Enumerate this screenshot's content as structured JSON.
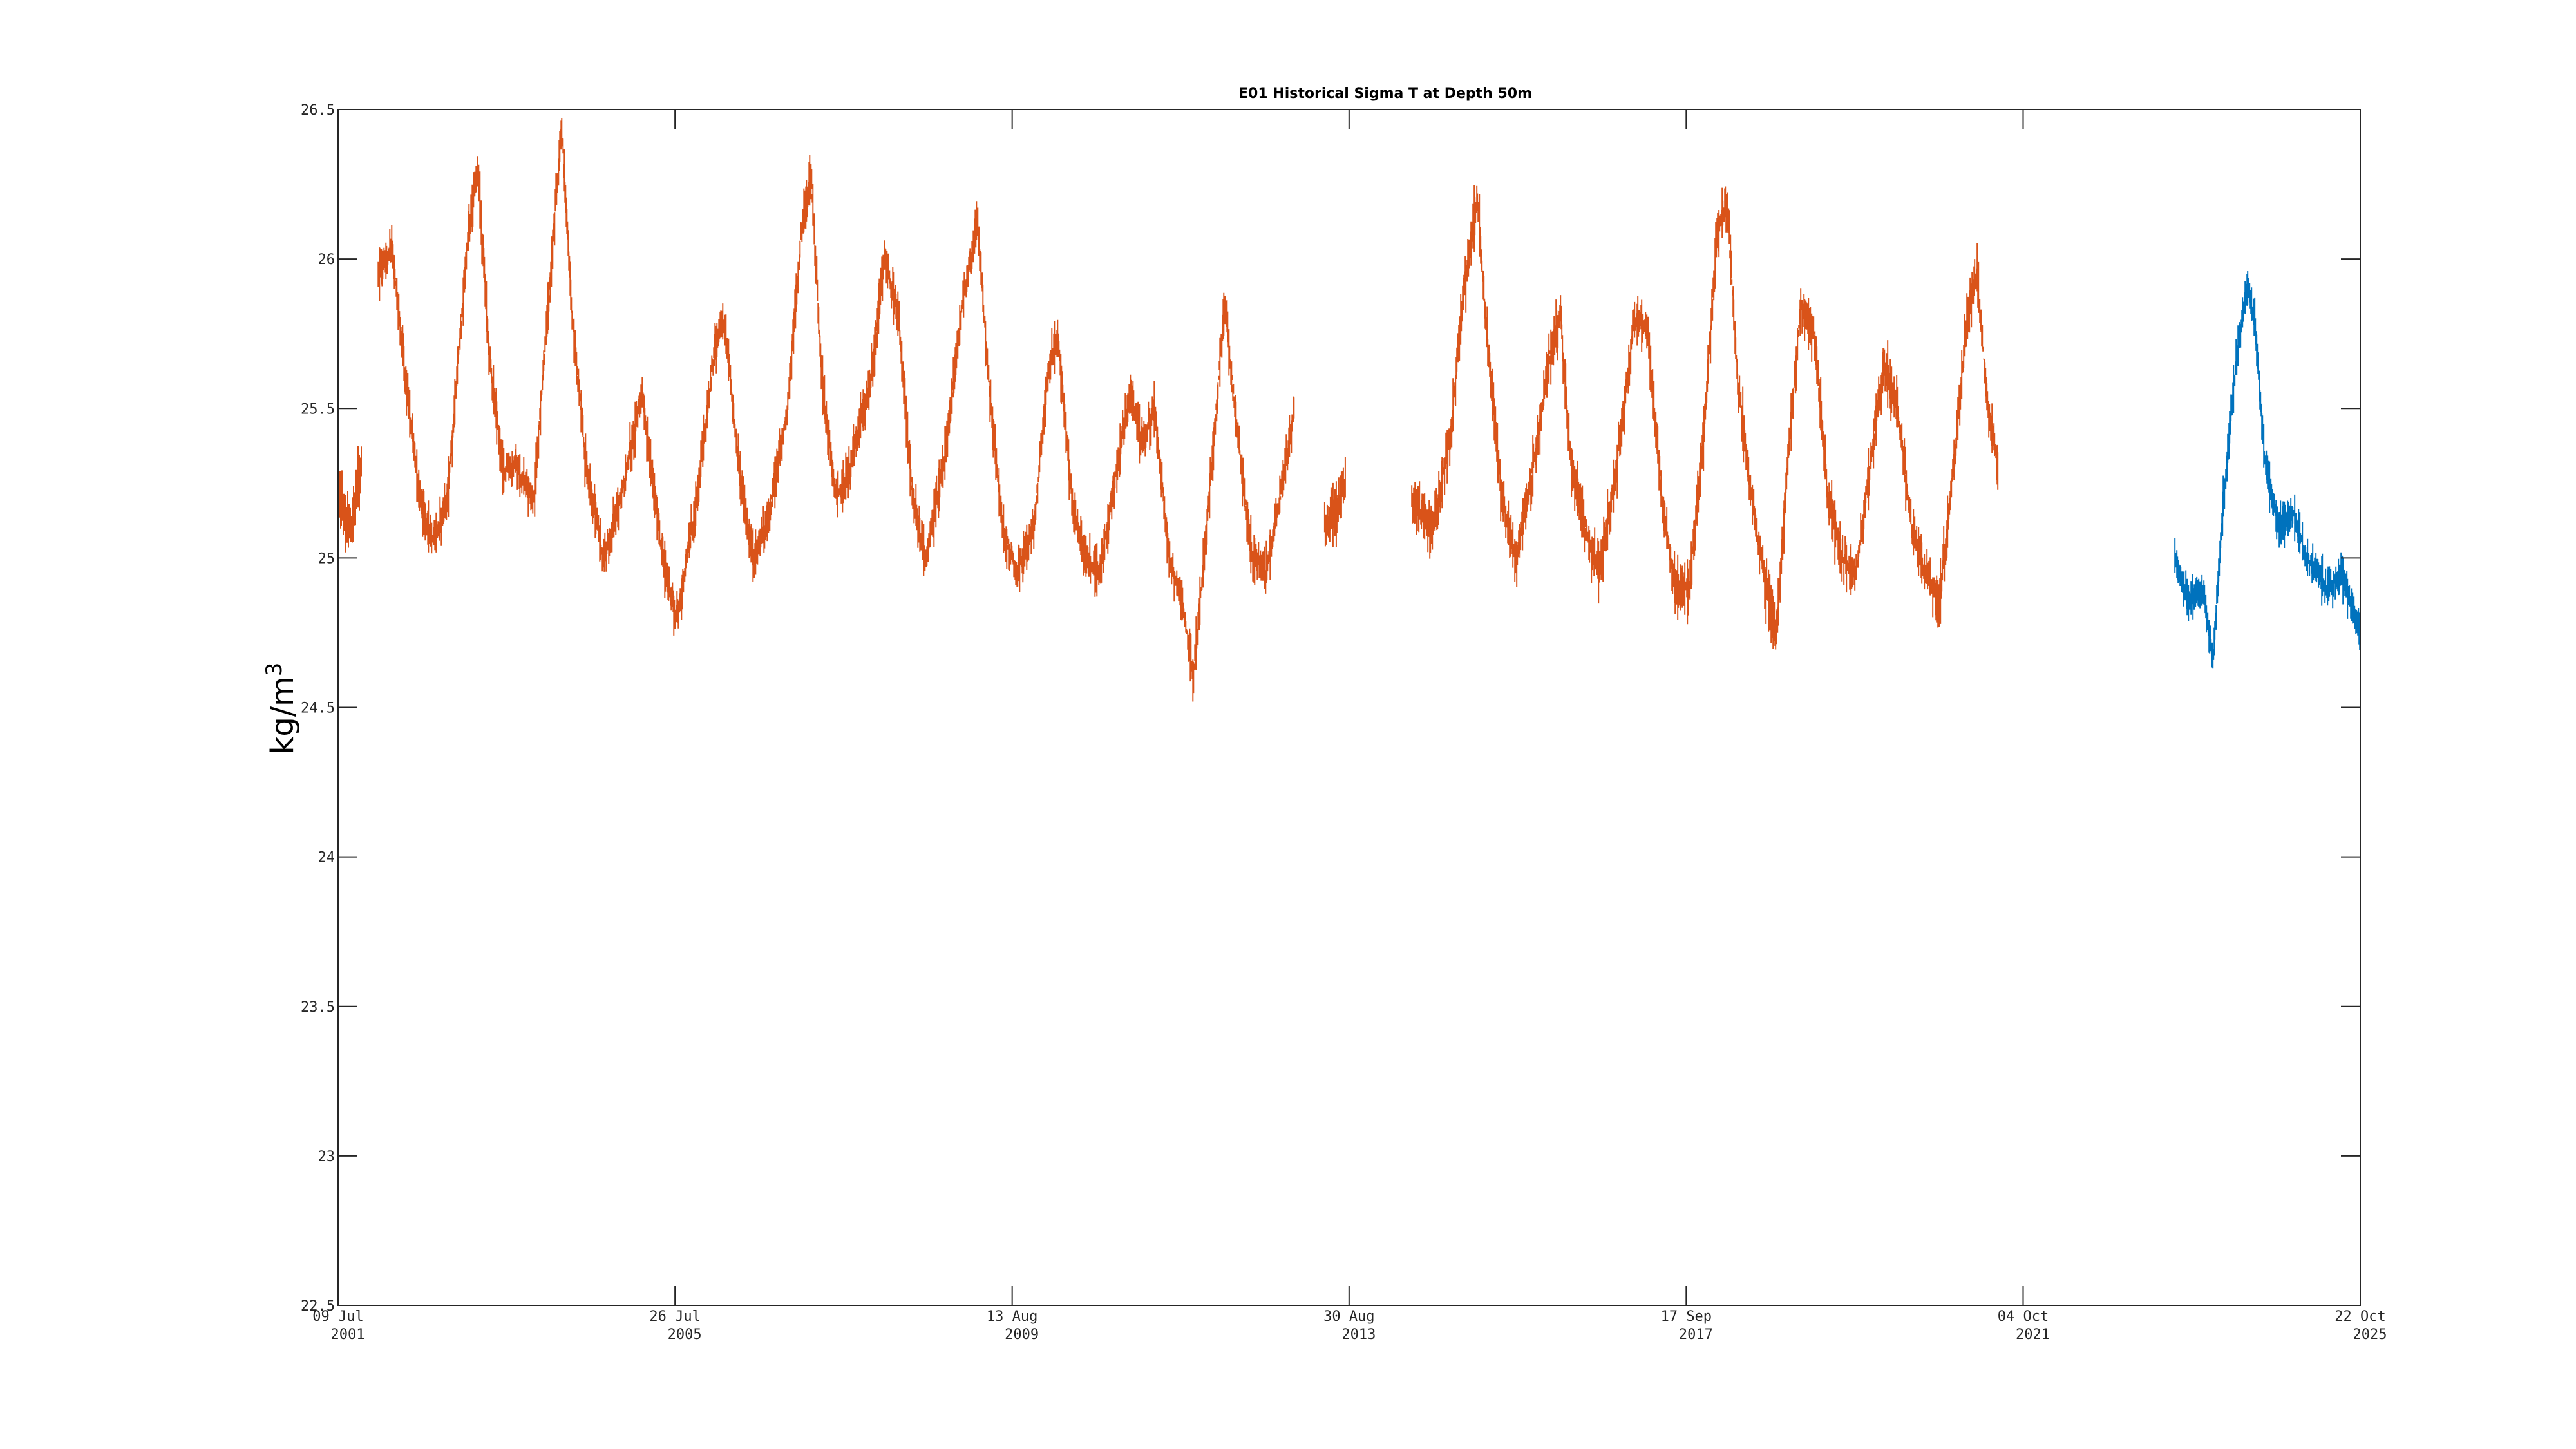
{
  "chart_data": {
    "type": "line",
    "title": "E01 Historical Sigma T at Depth 50m",
    "ylabel": "kg/m",
    "ylabel_superscript": "3",
    "xlabel": "",
    "ylim": [
      22.5,
      26.5
    ],
    "xlim": [
      "2001-07-09",
      "2025-10-22"
    ],
    "grid": false,
    "yticks": [
      22.5,
      23,
      23.5,
      24,
      24.5,
      25,
      25.5,
      26,
      26.5
    ],
    "ytick_labels": [
      "22.5",
      "23",
      "23.5",
      "24",
      "24.5",
      "25",
      "25.5",
      "26",
      "26.5"
    ],
    "xticks": [
      {
        "date": "2001-07-09",
        "line1": "09 Jul",
        "line2": "2001"
      },
      {
        "date": "2005-07-26",
        "line1": "26 Jul",
        "line2": "2005"
      },
      {
        "date": "2009-08-13",
        "line1": "13 Aug",
        "line2": "2009"
      },
      {
        "date": "2013-08-30",
        "line1": "30 Aug",
        "line2": "2013"
      },
      {
        "date": "2017-09-17",
        "line1": "17 Sep",
        "line2": "2017"
      },
      {
        "date": "2021-10-04",
        "line1": "04 Oct",
        "line2": "2021"
      },
      {
        "date": "2025-10-22",
        "line1": "22 Oct",
        "line2": "2025"
      }
    ],
    "series": [
      {
        "color": "#D95319",
        "segments": [
          {
            "noise": 0.1,
            "points": [
              [
                "2001-07-09",
                25.2
              ],
              [
                "2001-09-01",
                25.1
              ],
              [
                "2001-10-20",
                25.3
              ]
            ]
          },
          {
            "noise": 0.07,
            "points": [
              [
                "2002-01-01",
                25.95
              ],
              [
                "2002-03-01",
                26.05
              ],
              [
                "2002-05-01",
                25.6
              ],
              [
                "2002-07-01",
                25.2
              ],
              [
                "2002-09-01",
                25.05
              ],
              [
                "2002-11-01",
                25.2
              ],
              [
                "2003-02-01",
                26.1
              ],
              [
                "2003-03-15",
                26.3
              ],
              [
                "2003-05-01",
                25.7
              ],
              [
                "2003-07-01",
                25.3
              ],
              [
                "2003-09-01",
                25.3
              ],
              [
                "2003-11-15",
                25.2
              ],
              [
                "2004-02-01",
                26.0
              ],
              [
                "2004-03-15",
                26.45
              ],
              [
                "2004-05-01",
                25.8
              ],
              [
                "2004-07-01",
                25.3
              ],
              [
                "2004-09-15",
                25.0
              ],
              [
                "2004-12-01",
                25.2
              ],
              [
                "2005-03-01",
                25.55
              ],
              [
                "2005-06-01",
                25.0
              ],
              [
                "2005-08-01",
                24.8
              ],
              [
                "2005-11-01",
                25.2
              ],
              [
                "2006-01-15",
                25.7
              ],
              [
                "2006-03-01",
                25.8
              ],
              [
                "2006-05-01",
                25.3
              ],
              [
                "2006-07-01",
                25.0
              ],
              [
                "2006-09-01",
                25.1
              ],
              [
                "2006-12-01",
                25.5
              ],
              [
                "2007-02-01",
                26.1
              ],
              [
                "2007-03-15",
                26.28
              ],
              [
                "2007-05-01",
                25.6
              ],
              [
                "2007-07-01",
                25.2
              ],
              [
                "2007-09-01",
                25.3
              ],
              [
                "2007-12-01",
                25.6
              ],
              [
                "2008-02-01",
                26.0
              ],
              [
                "2008-04-01",
                25.8
              ],
              [
                "2008-06-01",
                25.2
              ],
              [
                "2008-08-01",
                25.0
              ],
              [
                "2008-10-15",
                25.3
              ],
              [
                "2009-01-15",
                25.9
              ],
              [
                "2009-03-15",
                26.12
              ],
              [
                "2009-05-01",
                25.6
              ],
              [
                "2009-07-01",
                25.1
              ],
              [
                "2009-09-01",
                24.95
              ],
              [
                "2009-11-15",
                25.1
              ],
              [
                "2010-01-15",
                25.6
              ],
              [
                "2010-03-01",
                25.75
              ],
              [
                "2010-05-01",
                25.2
              ],
              [
                "2010-07-01",
                25.0
              ],
              [
                "2010-09-01",
                24.95
              ],
              [
                "2010-11-15",
                25.3
              ],
              [
                "2011-01-15",
                25.55
              ],
              [
                "2011-03-01",
                25.4
              ],
              [
                "2011-05-01",
                25.5
              ],
              [
                "2011-07-01",
                25.0
              ],
              [
                "2011-09-01",
                24.85
              ],
              [
                "2011-10-15",
                24.6
              ],
              [
                "2011-12-15",
                25.1
              ],
              [
                "2012-03-01",
                25.85
              ],
              [
                "2012-05-01",
                25.4
              ],
              [
                "2012-07-01",
                25.0
              ],
              [
                "2012-09-01",
                24.95
              ],
              [
                "2012-11-01",
                25.2
              ],
              [
                "2013-01-01",
                25.5
              ]
            ]
          },
          {
            "noise": 0.1,
            "points": [
              [
                "2013-05-15",
                25.1
              ],
              [
                "2013-07-01",
                25.15
              ],
              [
                "2013-08-15",
                25.25
              ]
            ]
          },
          {
            "noise": 0.08,
            "points": [
              [
                "2014-06-01",
                25.2
              ],
              [
                "2014-09-01",
                25.1
              ],
              [
                "2014-11-15",
                25.4
              ],
              [
                "2015-01-15",
                25.9
              ],
              [
                "2015-03-15",
                26.2
              ],
              [
                "2015-05-01",
                25.7
              ],
              [
                "2015-07-01",
                25.2
              ],
              [
                "2015-09-01",
                25.0
              ],
              [
                "2015-11-15",
                25.3
              ],
              [
                "2016-02-01",
                25.7
              ],
              [
                "2016-03-15",
                25.8
              ],
              [
                "2016-05-01",
                25.3
              ],
              [
                "2016-07-01",
                25.1
              ],
              [
                "2016-09-01",
                24.95
              ],
              [
                "2016-11-15",
                25.3
              ],
              [
                "2017-02-01",
                25.8
              ],
              [
                "2017-04-01",
                25.75
              ],
              [
                "2017-06-01",
                25.2
              ],
              [
                "2017-08-01",
                24.9
              ],
              [
                "2017-10-01",
                24.9
              ],
              [
                "2017-12-01",
                25.4
              ],
              [
                "2018-02-01",
                26.1
              ],
              [
                "2018-03-15",
                26.18
              ],
              [
                "2018-05-01",
                25.6
              ],
              [
                "2018-07-01",
                25.2
              ],
              [
                "2018-09-01",
                24.9
              ],
              [
                "2018-10-15",
                24.75
              ],
              [
                "2018-12-15",
                25.4
              ],
              [
                "2019-02-01",
                25.85
              ],
              [
                "2019-04-01",
                25.75
              ],
              [
                "2019-06-01",
                25.2
              ],
              [
                "2019-08-01",
                25.0
              ],
              [
                "2019-10-01",
                24.95
              ],
              [
                "2019-12-01",
                25.3
              ],
              [
                "2020-02-01",
                25.65
              ],
              [
                "2020-04-01",
                25.5
              ],
              [
                "2020-06-01",
                25.1
              ],
              [
                "2020-08-01",
                24.95
              ],
              [
                "2020-10-01",
                24.85
              ],
              [
                "2020-12-01",
                25.3
              ],
              [
                "2021-02-01",
                25.8
              ],
              [
                "2021-03-15",
                25.95
              ],
              [
                "2021-05-01",
                25.5
              ],
              [
                "2021-06-15",
                25.3
              ]
            ]
          }
        ]
      },
      {
        "color": "#0072BD",
        "segments": [
          {
            "noise": 0.06,
            "points": [
              [
                "2023-08-01",
                25.0
              ],
              [
                "2023-10-01",
                24.85
              ],
              [
                "2023-12-01",
                24.9
              ],
              [
                "2024-01-15",
                24.65
              ],
              [
                "2024-03-01",
                25.2
              ],
              [
                "2024-05-01",
                25.7
              ],
              [
                "2024-06-15",
                25.92
              ],
              [
                "2024-07-15",
                25.8
              ],
              [
                "2024-09-01",
                25.3
              ],
              [
                "2024-11-01",
                25.1
              ],
              [
                "2025-01-01",
                25.15
              ],
              [
                "2025-03-01",
                25.0
              ],
              [
                "2025-06-01",
                24.9
              ],
              [
                "2025-08-01",
                24.95
              ],
              [
                "2025-10-22",
                24.75
              ]
            ]
          }
        ]
      }
    ]
  }
}
